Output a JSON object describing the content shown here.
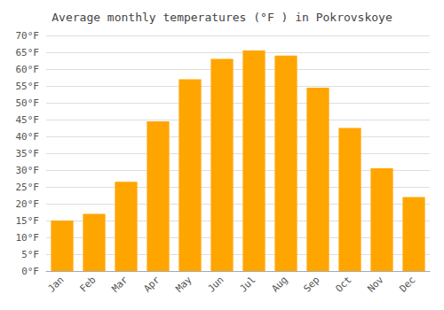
{
  "chart_data": {
    "type": "bar",
    "title": "Average monthly temperatures (°F ) in Pokrovskoye",
    "categories": [
      "Jan",
      "Feb",
      "Mar",
      "Apr",
      "May",
      "Jun",
      "Jul",
      "Aug",
      "Sep",
      "Oct",
      "Nov",
      "Dec"
    ],
    "values": [
      15,
      17,
      26.5,
      44.5,
      57,
      63,
      65.5,
      64,
      54.5,
      42.5,
      30.5,
      22
    ],
    "color": "#FFA500",
    "ylim": [
      0,
      70
    ],
    "yticks": [
      {
        "value": 0,
        "label": "0°F"
      },
      {
        "value": 5,
        "label": "5°F"
      },
      {
        "value": 10,
        "label": "10°F"
      },
      {
        "value": 15,
        "label": "15°F"
      },
      {
        "value": 20,
        "label": "20°F"
      },
      {
        "value": 25,
        "label": "25°F"
      },
      {
        "value": 30,
        "label": "30°F"
      },
      {
        "value": 35,
        "label": "35°F"
      },
      {
        "value": 40,
        "label": "40°F"
      },
      {
        "value": 45,
        "label": "45°F"
      },
      {
        "value": 50,
        "label": "50°F"
      },
      {
        "value": 55,
        "label": "55°F"
      },
      {
        "value": 60,
        "label": "60°F"
      },
      {
        "value": 65,
        "label": "65°F"
      },
      {
        "value": 70,
        "label": "70°F"
      }
    ],
    "grid": true
  }
}
